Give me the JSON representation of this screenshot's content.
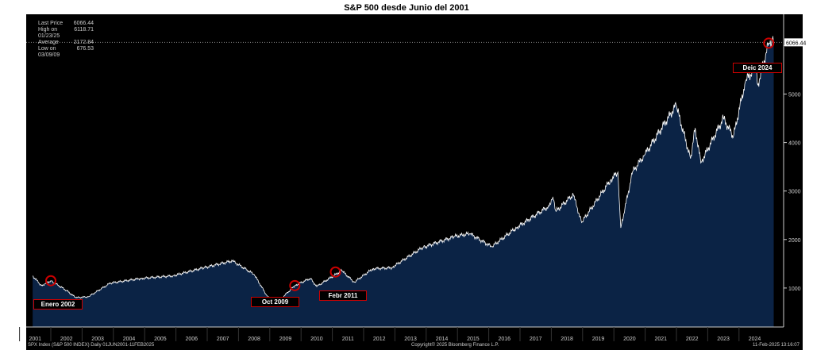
{
  "chart_data": {
    "type": "area",
    "title": "S&P 500 desde Junio del 2001",
    "series": [
      {
        "name": "SPX Index",
        "x": [
          2001.42,
          2001.7,
          2002.0,
          2002.5,
          2002.8,
          2003.2,
          2003.9,
          2004.9,
          2005.9,
          2006.9,
          2007.8,
          2008.5,
          2008.9,
          2009.2,
          2009.8,
          2010.3,
          2010.5,
          2011.3,
          2011.7,
          2012.3,
          2012.9,
          2013.9,
          2014.9,
          2015.4,
          2016.1,
          2016.9,
          2017.9,
          2018.05,
          2018.15,
          2018.7,
          2018.97,
          2019.9,
          2020.13,
          2020.22,
          2020.6,
          2020.99,
          2021.99,
          2022.45,
          2022.6,
          2022.78,
          2023.5,
          2023.82,
          2024.2,
          2024.55,
          2024.6,
          2024.95,
          2025.05,
          2025.11
        ],
        "y": [
          1250,
          1050,
          1150,
          950,
          800,
          820,
          1100,
          1200,
          1250,
          1420,
          1560,
          1280,
          850,
          680,
          1050,
          1200,
          1030,
          1360,
          1120,
          1400,
          1420,
          1840,
          2060,
          2120,
          1850,
          2250,
          2680,
          2870,
          2580,
          2930,
          2350,
          3230,
          3390,
          2240,
          3400,
          3750,
          4770,
          3670,
          4300,
          3580,
          4500,
          4120,
          5250,
          5600,
          5190,
          6050,
          6118,
          6066
        ]
      }
    ],
    "xlim": [
      2001,
      2025.2
    ],
    "ylim": [
      0,
      6500
    ],
    "xticks": [
      "2001",
      "2002",
      "2003",
      "2004",
      "2005",
      "2006",
      "2007",
      "2008",
      "2009",
      "2010",
      "2011",
      "2012",
      "2013",
      "2014",
      "2015",
      "2016",
      "2017",
      "2018",
      "2019",
      "2020",
      "2021",
      "2022",
      "2023",
      "2024"
    ],
    "yticks": [
      1000,
      2000,
      3000,
      4000,
      5000,
      6000
    ],
    "last_label": "6066.44",
    "legend": [
      {
        "label": "Last Price",
        "value": "6066.44"
      },
      {
        "label": "High on 01/23/25",
        "value": "6118.71"
      },
      {
        "label": "Average",
        "value": "2172.84"
      },
      {
        "label": "Low on 03/09/09",
        "value": "676.53"
      }
    ],
    "annotations": [
      {
        "text": "Enero 2002",
        "x": 2002.0,
        "y": 1150
      },
      {
        "text": "Oct 2009",
        "x": 2009.8,
        "y": 1050
      },
      {
        "text": "Febr 2011",
        "x": 2011.1,
        "y": 1330
      },
      {
        "text": "Deic 2024",
        "x": 2024.95,
        "y": 6050
      }
    ]
  },
  "footer": {
    "left": "SPX Index (S&P 500 INDEX)  Daily 01JUN2001-11FEB2025",
    "center": "Copyright© 2025 Bloomberg Finance L.P.",
    "right": "11-Feb-2025 13:16:07"
  },
  "colors": {
    "fill": "#0b2345",
    "line": "#ffffff",
    "annotation": "#cc0000"
  }
}
